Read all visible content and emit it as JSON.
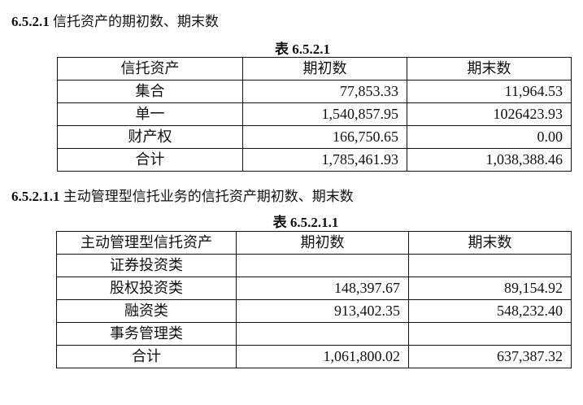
{
  "section1": {
    "number": "6.5.2.1",
    "title": "信托资产的期初数、期末数",
    "caption": "表 6.5.2.1",
    "headers": [
      "信托资产",
      "期初数",
      "期末数"
    ],
    "rows": [
      [
        "集合",
        "77,853.33",
        "11,964.53"
      ],
      [
        "单一",
        "1,540,857.95",
        "1026423.93"
      ],
      [
        "财产权",
        "166,750.65",
        "0.00"
      ],
      [
        "合计",
        "1,785,461.93",
        "1,038,388.46"
      ]
    ]
  },
  "section2": {
    "number": "6.5.2.1.1",
    "title": "主动管理型信托业务的信托资产期初数、期末数",
    "caption": "表 6.5.2.1.1",
    "headers": [
      "主动管理型信托资产",
      "期初数",
      "期末数"
    ],
    "rows": [
      [
        "证券投资类",
        "",
        ""
      ],
      [
        "股权投资类",
        "148,397.67",
        "89,154.92"
      ],
      [
        "融资类",
        "913,402.35",
        "548,232.40"
      ],
      [
        "事务管理类",
        "",
        ""
      ],
      [
        "合计",
        "1,061,800.02",
        "637,387.32"
      ]
    ]
  }
}
